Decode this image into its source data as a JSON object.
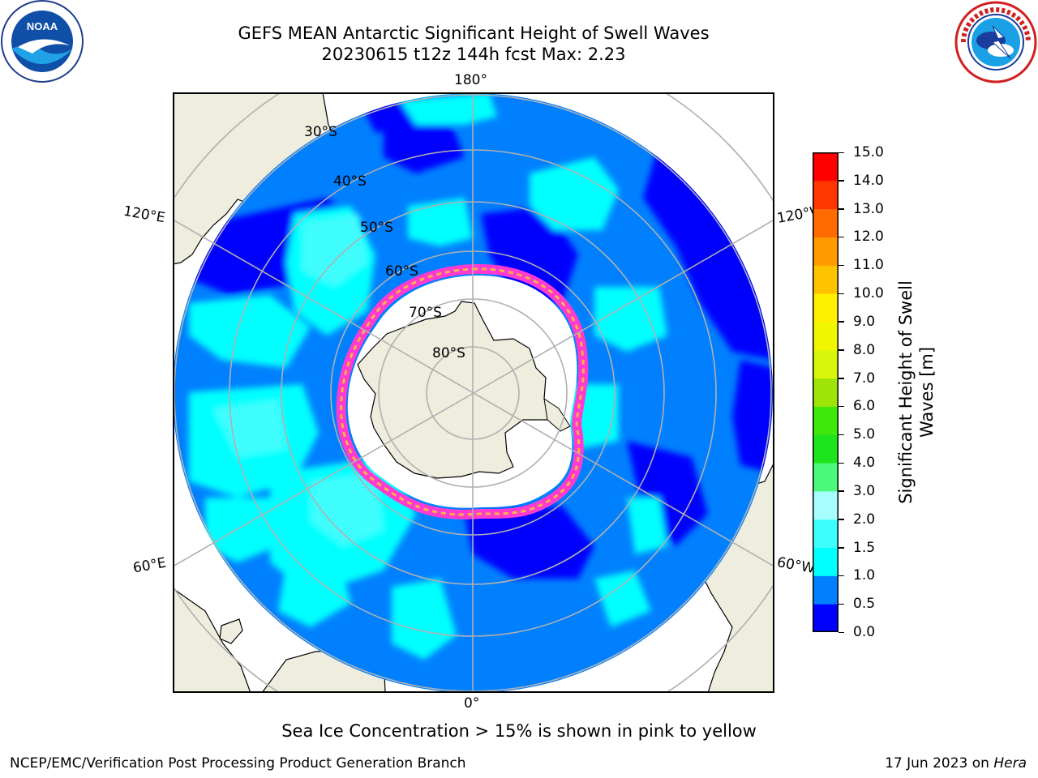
{
  "header": {
    "title_line1": "GEFS MEAN Antarctic Significant Height of Swell Waves",
    "title_line2": "20230615 t12z 144h fcst   Max: 2.23",
    "agency_logo_left": "NOAA",
    "agency_logo_right": "NATIONAL WEATHER SERVICE"
  },
  "map": {
    "projection": "south-polar-stereographic",
    "longitude_labels": {
      "top": "180°",
      "bottom": "0°",
      "upper_left": "120°E",
      "upper_right": "120°W",
      "lower_left": "60°E",
      "lower_right": "60°W"
    },
    "latitude_labels": [
      "30°S",
      "40°S",
      "50°S",
      "60°S",
      "70°S",
      "80°S"
    ],
    "colors": {
      "land": "#eeedde",
      "ice_shelf": "#ffffff",
      "graticule": "#b0b0b0",
      "ice_edge_pink": "#ff3ad0",
      "ice_edge_yellow": "#ffb347"
    }
  },
  "colorbar": {
    "label_line1": "Significant Height of Swell",
    "label_line2": "Waves [m]",
    "ticks": [
      "15.0",
      "14.0",
      "13.0",
      "12.0",
      "11.0",
      "10.0",
      "9.0",
      "8.0",
      "7.0",
      "6.0",
      "5.0",
      "4.0",
      "3.0",
      "2.0",
      "1.5",
      "1.0",
      "0.5",
      "0.0"
    ],
    "levels": [
      0.0,
      0.5,
      1.0,
      1.5,
      2.0,
      3.0,
      4.0,
      5.0,
      6.0,
      7.0,
      8.0,
      9.0,
      10.0,
      11.0,
      12.0,
      13.0,
      14.0,
      15.0
    ],
    "colors": [
      "#0000ff",
      "#0080ff",
      "#00ffff",
      "#3ffdfd",
      "#a7feff",
      "#4cf97c",
      "#1de51d",
      "#3de80a",
      "#9ee406",
      "#d8f50c",
      "#f0f500",
      "#fff000",
      "#ffc300",
      "#ff9a00",
      "#ff6b00",
      "#ff3600",
      "#ff0000"
    ]
  },
  "caption": "Sea Ice Concentration > 15% is shown in pink to yellow",
  "footer": {
    "left": "NCEP/EMC/Verification Post Processing Product Generation Branch",
    "right_date": "17 Jun 2023 on ",
    "right_host": "Hera"
  }
}
